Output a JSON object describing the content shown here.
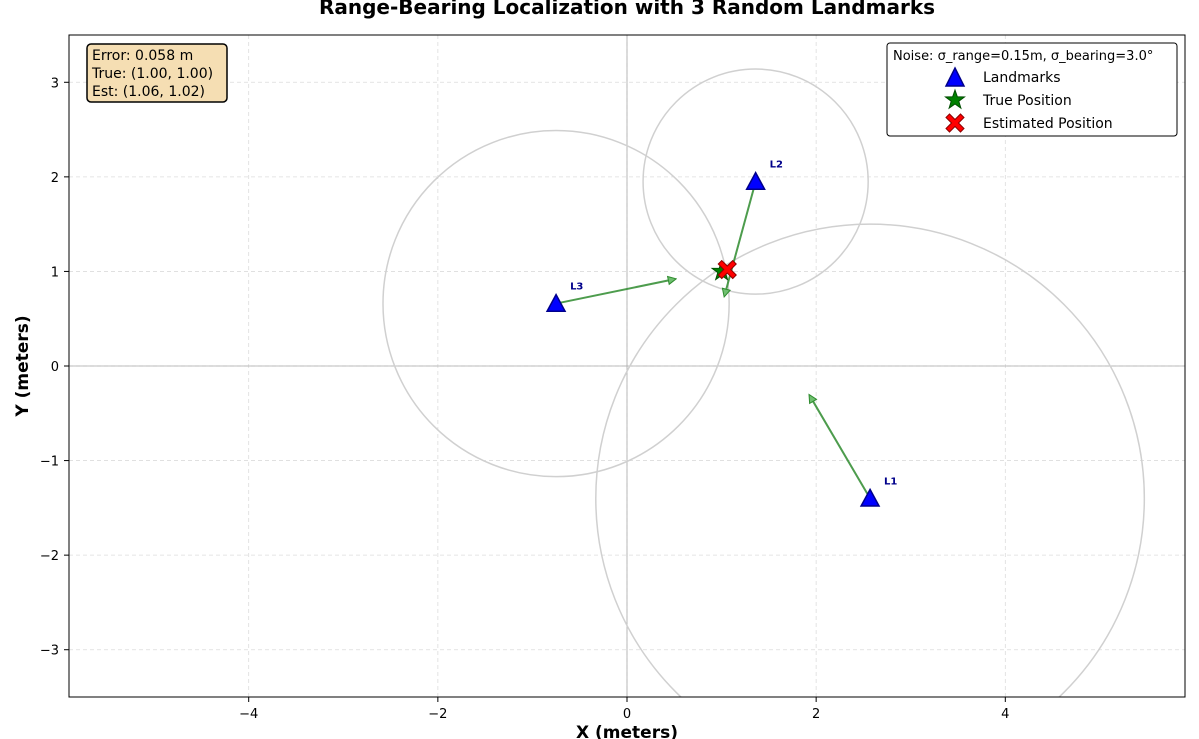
{
  "chart_data": {
    "type": "scatter",
    "title": "Range-Bearing Localization with 3 Random Landmarks",
    "xlabel": "X (meters)",
    "ylabel": "Y (meters)",
    "xlim": [
      -5.9,
      5.9
    ],
    "ylim": [
      -3.5,
      3.5
    ],
    "xticks": [
      -4,
      -2,
      0,
      2,
      4
    ],
    "yticks": [
      -3,
      -2,
      -1,
      0,
      1,
      2,
      3
    ],
    "xtick_labels": [
      "−4",
      "−2",
      "0",
      "2",
      "4"
    ],
    "ytick_labels": [
      "−3",
      "−2",
      "−1",
      "0",
      "1",
      "2",
      "3"
    ],
    "grid": true,
    "legend_position": "top-right",
    "legend_title": "Noise: σ_range=0.15m, σ_bearing=3.0°",
    "landmarks": [
      {
        "label": "L1",
        "x": 2.57,
        "y": -1.4,
        "range": 2.9,
        "arrow_to": [
          1.93,
          -0.31
        ]
      },
      {
        "label": "L2",
        "x": 1.36,
        "y": 1.95,
        "range": 1.19,
        "arrow_to": [
          1.03,
          0.74
        ]
      },
      {
        "label": "L3",
        "x": -0.75,
        "y": 0.66,
        "range": 1.83,
        "arrow_to": [
          0.51,
          0.92
        ]
      }
    ],
    "true_position": {
      "x": 1.0,
      "y": 1.0
    },
    "estimated_position": {
      "x": 1.06,
      "y": 1.02
    },
    "series": [
      {
        "name": "Landmarks",
        "color": "#0000ff",
        "marker": "triangle"
      },
      {
        "name": "True Position",
        "color": "#008000",
        "marker": "star"
      },
      {
        "name": "Estimated Position",
        "color": "#ff0000",
        "marker": "x"
      }
    ],
    "info_box": {
      "lines": [
        "Error: 0.058 m",
        "True: (1.00, 1.00)",
        "Est: (1.06, 1.02)"
      ]
    },
    "colors": {
      "range_circle": "#d0d0d0",
      "arrow": "#2e8b2e",
      "info_box_bg": "#f5deb3",
      "landmark_label": "#00008b"
    }
  }
}
